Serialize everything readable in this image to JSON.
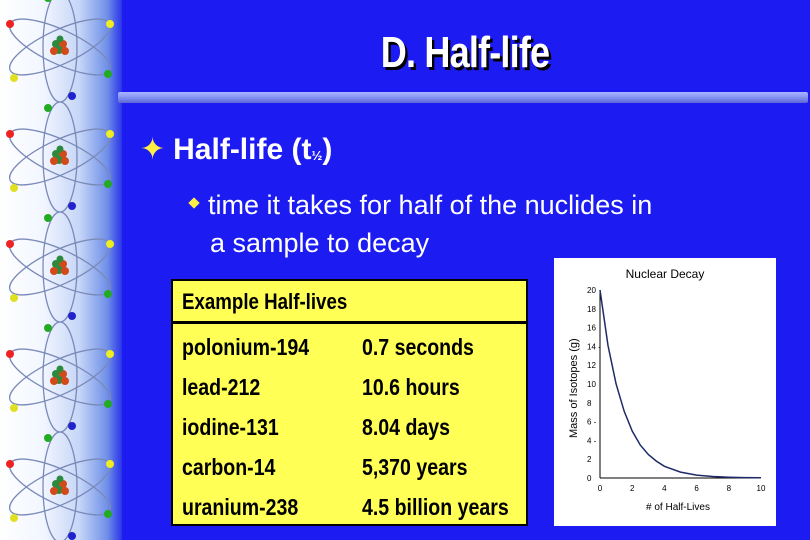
{
  "slide": {
    "title": "D. Half-life",
    "bullet1": {
      "text": "Half-life (t",
      "subscript": "½",
      "close": ")"
    },
    "bullet2": {
      "line1": "time it takes for half of the nuclides in",
      "line2": "a sample to decay"
    }
  },
  "half_lives_table": {
    "header": "Example Half-lives",
    "rows": [
      {
        "isotope": "polonium-194",
        "half_life": "0.7 seconds"
      },
      {
        "isotope": "lead-212",
        "half_life": "10.6 hours"
      },
      {
        "isotope": "iodine-131",
        "half_life": "8.04 days"
      },
      {
        "isotope": "carbon-14",
        "half_life": "5,370 years"
      },
      {
        "isotope": "uranium-238",
        "half_life": "4.5 billion years"
      }
    ]
  },
  "chart_data": {
    "type": "line",
    "title": "Nuclear Decay",
    "xlabel": "# of Half-Lives",
    "ylabel": "Mass of Isotopes (g)",
    "xlim": [
      0,
      10
    ],
    "ylim": [
      0,
      20
    ],
    "x_ticks": [
      "0",
      "2",
      "4",
      "6",
      "8",
      "10"
    ],
    "y_ticks": [
      "0",
      "2",
      "4 -",
      "6 -",
      "8",
      "10",
      "12",
      "14 -",
      "16",
      "18",
      "20"
    ],
    "series": [
      {
        "x": [
          0,
          0.5,
          1,
          1.5,
          2,
          2.5,
          3,
          3.5,
          4,
          5,
          6,
          7,
          8,
          9,
          10
        ],
        "y": [
          20,
          14.1,
          10,
          7.1,
          5,
          3.5,
          2.5,
          1.8,
          1.25,
          0.63,
          0.31,
          0.16,
          0.08,
          0.04,
          0.02
        ]
      }
    ],
    "line_color": "#1f2a66",
    "grid": false
  },
  "colors": {
    "background": "#1c1cf2",
    "bullet": "#ffee44",
    "table": "#ffff55"
  },
  "icons": {
    "bullet1": "four-point-star-icon",
    "bullet2": "diamond-bullet-icon",
    "sidebar": "atom-icon"
  }
}
